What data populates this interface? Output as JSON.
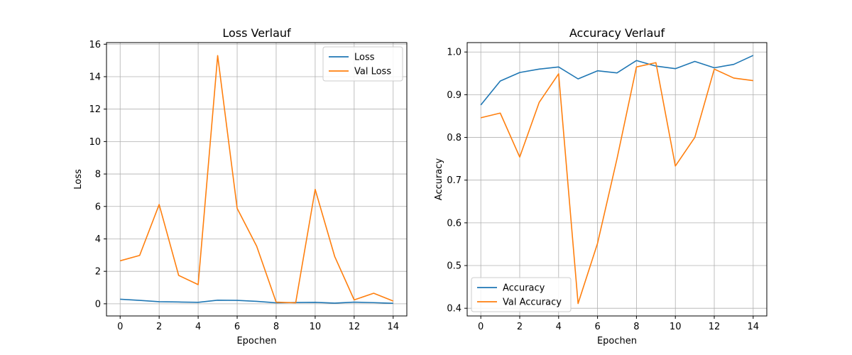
{
  "chart_data": [
    {
      "type": "line",
      "title": "Loss Verlauf",
      "xlabel": "Epochen",
      "ylabel": "Loss",
      "x": [
        0,
        1,
        2,
        3,
        4,
        5,
        6,
        7,
        8,
        9,
        10,
        11,
        12,
        13,
        14
      ],
      "xlim": [
        -0.7,
        14.7
      ],
      "ylim": [
        -0.75,
        16.1
      ],
      "xticks": [
        0,
        2,
        4,
        6,
        8,
        10,
        12,
        14
      ],
      "yticks": [
        0,
        2,
        4,
        6,
        8,
        10,
        12,
        14,
        16
      ],
      "xtick_labels": [
        "0",
        "2",
        "4",
        "6",
        "8",
        "10",
        "12",
        "14"
      ],
      "ytick_labels": [
        "0",
        "2",
        "4",
        "6",
        "8",
        "10",
        "12",
        "14",
        "16"
      ],
      "grid": true,
      "legend_position": "top-right",
      "series": [
        {
          "name": "Loss",
          "color": "#1f77b4",
          "values": [
            0.28,
            0.21,
            0.13,
            0.11,
            0.09,
            0.22,
            0.21,
            0.15,
            0.06,
            0.08,
            0.09,
            0.04,
            0.1,
            0.07,
            0.03
          ]
        },
        {
          "name": "Val Loss",
          "color": "#ff7f0e",
          "values": [
            2.65,
            2.98,
            6.12,
            1.75,
            1.18,
            15.3,
            5.88,
            3.55,
            0.1,
            0.06,
            7.05,
            2.92,
            0.24,
            0.65,
            0.17
          ]
        }
      ]
    },
    {
      "type": "line",
      "title": "Accuracy Verlauf",
      "xlabel": "Epochen",
      "ylabel": "Accuracy",
      "x": [
        0,
        1,
        2,
        3,
        4,
        5,
        6,
        7,
        8,
        9,
        10,
        11,
        12,
        13,
        14
      ],
      "xlim": [
        -0.7,
        14.7
      ],
      "ylim": [
        0.382,
        1.022
      ],
      "xticks": [
        0,
        2,
        4,
        6,
        8,
        10,
        12,
        14
      ],
      "yticks": [
        0.4,
        0.5,
        0.6,
        0.7,
        0.8,
        0.9,
        1.0
      ],
      "xtick_labels": [
        "0",
        "2",
        "4",
        "6",
        "8",
        "10",
        "12",
        "14"
      ],
      "ytick_labels": [
        "0.4",
        "0.5",
        "0.6",
        "0.7",
        "0.8",
        "0.9",
        "1.0"
      ],
      "grid": true,
      "legend_position": "bottom-left",
      "series": [
        {
          "name": "Accuracy",
          "color": "#1f77b4",
          "values": [
            0.876,
            0.932,
            0.952,
            0.96,
            0.965,
            0.937,
            0.956,
            0.951,
            0.98,
            0.967,
            0.961,
            0.978,
            0.963,
            0.971,
            0.992
          ]
        },
        {
          "name": "Val Accuracy",
          "color": "#ff7f0e",
          "values": [
            0.846,
            0.857,
            0.754,
            0.882,
            0.949,
            0.411,
            0.552,
            0.75,
            0.965,
            0.975,
            0.733,
            0.8,
            0.96,
            0.939,
            0.933
          ]
        }
      ]
    }
  ]
}
